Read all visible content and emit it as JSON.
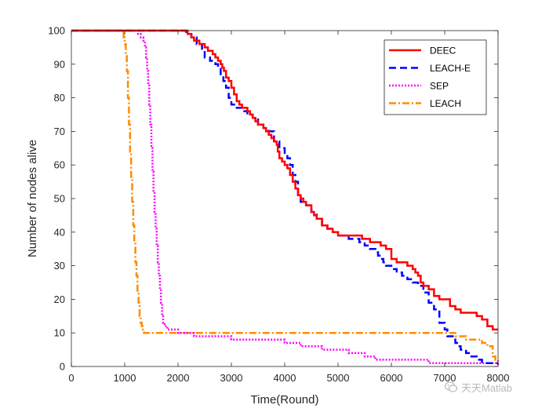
{
  "chart_data": {
    "type": "line",
    "title": "",
    "xlabel": "Time(Round)",
    "ylabel": "Number of nodes alive",
    "xlim": [
      0,
      8000
    ],
    "ylim": [
      0,
      100
    ],
    "xticks": [
      "0",
      "1000",
      "2000",
      "3000",
      "4000",
      "5000",
      "6000",
      "7000",
      "8000"
    ],
    "yticks": [
      "0",
      "10",
      "20",
      "30",
      "40",
      "50",
      "60",
      "70",
      "80",
      "90",
      "100"
    ],
    "grid": false,
    "legend_position": "top-right",
    "series": [
      {
        "name": "DEEC",
        "color": "#ff0000",
        "dash": "solid",
        "x": [
          0,
          2000,
          2180,
          2250,
          2300,
          2400,
          2500,
          2560,
          2650,
          2700,
          2750,
          2800,
          2830,
          2860,
          2900,
          2950,
          3000,
          3050,
          3100,
          3150,
          3200,
          3300,
          3350,
          3400,
          3450,
          3500,
          3600,
          3650,
          3700,
          3750,
          3800,
          3850,
          3870,
          3900,
          3950,
          4000,
          4050,
          4100,
          4150,
          4200,
          4250,
          4300,
          4350,
          4400,
          4500,
          4550,
          4600,
          4700,
          4800,
          4900,
          5000,
          5100,
          5300,
          5450,
          5500,
          5600,
          5700,
          5800,
          5850,
          5900,
          6000,
          6100,
          6200,
          6300,
          6400,
          6450,
          6500,
          6550,
          6600,
          6700,
          6800,
          6900,
          7000,
          7100,
          7200,
          7300,
          7400,
          7500,
          7600,
          7700,
          7800,
          7900,
          8000
        ],
        "y": [
          100,
          100,
          99,
          98,
          97,
          96,
          95,
          94,
          93,
          92,
          91,
          90,
          89,
          88,
          86,
          85,
          83,
          81,
          79,
          78,
          77,
          76,
          75,
          74,
          73,
          72,
          71,
          70,
          69,
          68,
          67,
          66,
          64,
          62,
          61,
          60,
          59,
          57,
          55,
          53,
          51,
          50,
          49,
          48,
          46,
          45,
          44,
          42,
          41,
          40,
          39,
          39,
          39,
          38,
          38,
          37,
          37,
          36,
          36,
          35,
          32,
          31,
          31,
          30,
          29,
          28,
          27,
          25,
          24,
          23,
          21,
          20,
          20,
          18,
          17,
          16,
          16,
          16,
          15,
          14,
          12,
          11,
          11
        ]
      },
      {
        "name": "LEACH-E",
        "color": "#0000ff",
        "dash": "dashed",
        "x": [
          0,
          2000,
          2150,
          2250,
          2350,
          2450,
          2500,
          2600,
          2700,
          2750,
          2800,
          2850,
          2900,
          2950,
          3000,
          3100,
          3200,
          3300,
          3400,
          3500,
          3600,
          3700,
          3800,
          3900,
          4000,
          4050,
          4100,
          4150,
          4200,
          4250,
          4300,
          4400,
          4500,
          4600,
          4700,
          4800,
          4900,
          5000,
          5100,
          5200,
          5300,
          5400,
          5500,
          5600,
          5700,
          5750,
          5800,
          5850,
          5900,
          6000,
          6100,
          6200,
          6300,
          6400,
          6500,
          6600,
          6700,
          6800,
          6900,
          7000,
          7050,
          7100,
          7150,
          7200,
          7250,
          7300,
          7400,
          7500,
          7600,
          7700,
          7800,
          7900,
          8000
        ],
        "y": [
          100,
          100,
          99,
          98,
          96,
          94,
          92,
          91,
          90,
          89,
          87,
          85,
          83,
          80,
          78,
          77,
          76,
          75,
          74,
          72,
          71,
          70,
          67,
          65,
          63,
          62,
          60,
          57,
          55,
          51,
          49,
          48,
          46,
          44,
          42,
          41,
          40,
          39,
          39,
          38,
          38,
          37,
          36,
          35,
          34,
          33,
          32,
          31,
          30,
          29,
          28,
          27,
          26,
          25,
          24,
          22,
          19,
          17,
          13,
          11,
          9,
          9,
          8,
          7,
          6,
          5,
          4,
          3,
          2,
          1,
          1,
          1,
          1
        ]
      },
      {
        "name": "SEP",
        "color": "#ff00ff",
        "dash": "dotted",
        "x": [
          0,
          1200,
          1250,
          1300,
          1350,
          1380,
          1400,
          1420,
          1440,
          1460,
          1480,
          1500,
          1520,
          1540,
          1560,
          1580,
          1600,
          1620,
          1640,
          1660,
          1680,
          1700,
          1720,
          1750,
          1800,
          2000,
          2300,
          2400,
          2600,
          2800,
          3000,
          3200,
          3400,
          3600,
          3800,
          4000,
          4100,
          4300,
          4500,
          4700,
          5000,
          5200,
          5500,
          5700,
          6000,
          6300,
          6600,
          6700,
          6800,
          7000,
          7200,
          7500,
          7800,
          7900,
          8000
        ],
        "y": [
          100,
          100,
          99,
          98,
          97,
          95,
          92,
          88,
          84,
          78,
          72,
          65,
          58,
          52,
          46,
          41,
          36,
          31,
          27,
          23,
          19,
          15,
          13,
          12,
          11,
          10,
          9,
          9,
          9,
          9,
          8,
          8,
          8,
          8,
          8,
          7,
          7,
          6,
          6,
          5,
          5,
          4,
          3,
          2,
          2,
          2,
          2,
          1,
          1,
          1,
          1,
          1,
          1,
          1,
          0
        ]
      },
      {
        "name": "LEACH",
        "color": "#ff8c00",
        "dash": "dashdot",
        "x": [
          0,
          950,
          980,
          1000,
          1020,
          1040,
          1060,
          1080,
          1100,
          1120,
          1140,
          1160,
          1180,
          1200,
          1220,
          1240,
          1260,
          1280,
          1300,
          1320,
          1340,
          1360,
          1380,
          1500,
          2000,
          3000,
          4000,
          5000,
          6000,
          7000,
          7200,
          7400,
          7500,
          7700,
          7800,
          7900,
          7950,
          8000
        ],
        "y": [
          100,
          100,
          98,
          96,
          93,
          88,
          80,
          72,
          64,
          56,
          49,
          42,
          37,
          31,
          27,
          22,
          19,
          15,
          13,
          12,
          11,
          10,
          10,
          10,
          10,
          10,
          10,
          10,
          10,
          10,
          9,
          8,
          8,
          7,
          6,
          3,
          2,
          1
        ]
      }
    ]
  },
  "watermark": {
    "text": "天天Matlab",
    "icon": "wechat-bubble-icon"
  }
}
